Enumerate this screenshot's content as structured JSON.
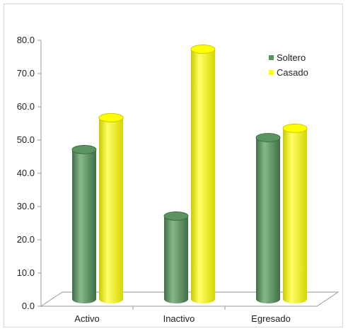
{
  "chart_data": {
    "type": "bar",
    "categories": [
      "Activo",
      "Inactivo",
      "Egresado"
    ],
    "series": [
      {
        "name": "Soltero",
        "values": [
          45.0,
          25.0,
          48.6
        ],
        "color": "#5b9460"
      },
      {
        "name": "Casado",
        "values": [
          54.6,
          75.2,
          51.4
        ],
        "color": "#ffff00"
      }
    ],
    "ylim": [
      0,
      80
    ],
    "yticks": [
      "0.0",
      "10.0",
      "20.0",
      "30.0",
      "40.0",
      "50.0",
      "60.0",
      "70.0",
      "80.0"
    ],
    "legend_position": "top-right",
    "grid": false,
    "style": "3d-cylinder"
  }
}
